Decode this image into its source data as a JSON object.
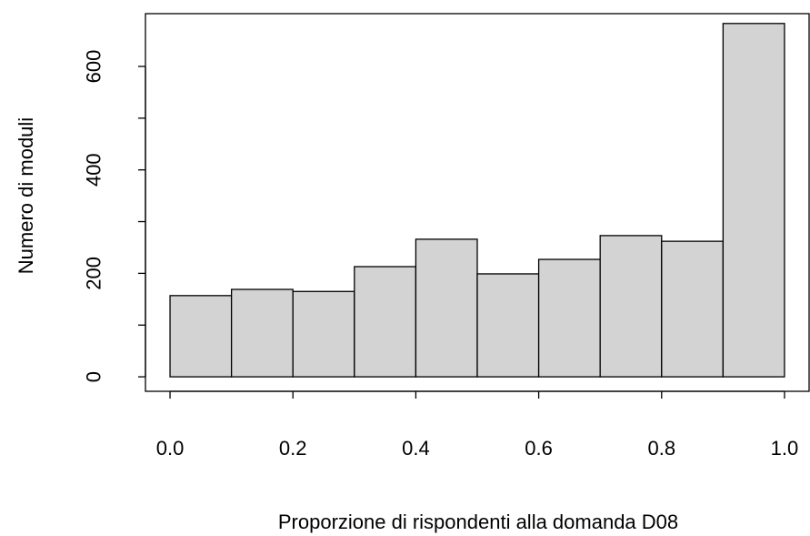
{
  "chart_data": {
    "type": "histogram",
    "xlabel": "Proporzione di rispondenti alla domanda D08",
    "ylabel": "Numero di moduli",
    "bins": [
      0.0,
      0.1,
      0.2,
      0.3,
      0.4,
      0.5,
      0.6,
      0.7,
      0.8,
      0.9,
      1.0
    ],
    "values": [
      157,
      169,
      165,
      213,
      266,
      199,
      227,
      273,
      262,
      683
    ],
    "color": "#d3d3d3",
    "xlim": [
      -0.04,
      1.04
    ],
    "xticks": [
      {
        "value": 0,
        "label": "0.0"
      },
      0.2,
      0.4,
      0.6,
      0.8,
      {
        "value": 1,
        "label": "1.0"
      }
    ],
    "ylim": [
      -28,
      702
    ],
    "yticks": [
      0,
      200,
      400,
      600
    ],
    "yminorticks": [
      100,
      300,
      500
    ]
  }
}
